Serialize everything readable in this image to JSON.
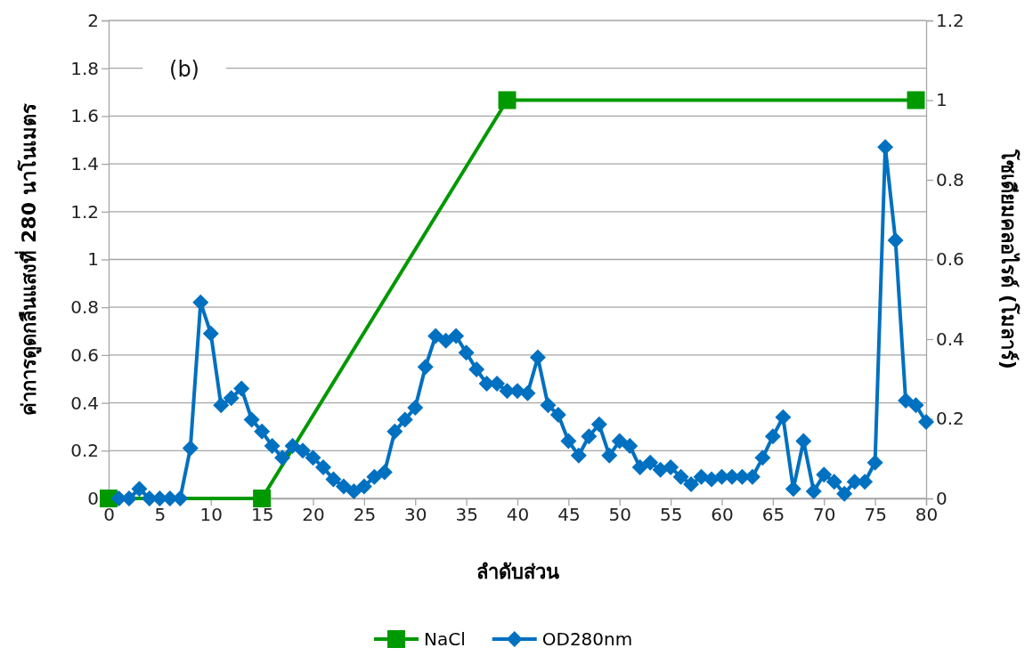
{
  "chart_data": {
    "type": "line",
    "xlabel": "ลำดับส่วน",
    "ylabel": "ค่าการดูดกลืนแสงที่ 280 นาโนเมตร",
    "y2label": "โซเดียมคลอไรด์ (โมลาร์)",
    "annotations": [
      "(b)"
    ],
    "xlim": [
      0,
      80
    ],
    "xticks": [
      0,
      5,
      10,
      15,
      20,
      25,
      30,
      35,
      40,
      45,
      50,
      55,
      60,
      65,
      70,
      75,
      80
    ],
    "ylim": [
      0,
      2
    ],
    "yticks": [
      0,
      0.2,
      0.4,
      0.6,
      0.8,
      1,
      1.2,
      1.4,
      1.6,
      1.8,
      2
    ],
    "y2lim": [
      0,
      1.2
    ],
    "y2ticks": [
      0,
      0.2,
      0.4,
      0.6,
      0.8,
      1,
      1.2
    ],
    "grid": "y",
    "legend": "bottom",
    "line_style": "solid",
    "series": [
      {
        "name": "NaCl",
        "color": "#009900",
        "axis": "y2",
        "marker": "square",
        "x": [
          0,
          15,
          39,
          79
        ],
        "values": [
          0,
          0,
          1,
          1
        ]
      },
      {
        "name": "OD280nm",
        "color": "#0070c0",
        "marker": "diamond",
        "x": [
          1,
          2,
          3,
          4,
          5,
          6,
          7,
          8,
          9,
          10,
          11,
          12,
          13,
          14,
          15,
          16,
          17,
          18,
          19,
          20,
          21,
          22,
          23,
          24,
          25,
          26,
          27,
          28,
          29,
          30,
          31,
          32,
          33,
          34,
          35,
          36,
          37,
          38,
          39,
          40,
          41,
          42,
          43,
          44,
          45,
          46,
          47,
          48,
          49,
          50,
          51,
          52,
          53,
          54,
          55,
          56,
          57,
          58,
          59,
          60,
          61,
          62,
          63,
          64,
          65,
          66,
          67,
          68,
          69,
          70,
          71,
          72,
          73,
          74,
          75,
          76,
          77,
          78,
          79,
          80
        ],
        "values": [
          0,
          0,
          0.04,
          0,
          0,
          0,
          0,
          0.21,
          0.82,
          0.69,
          0.39,
          0.42,
          0.46,
          0.33,
          0.28,
          0.22,
          0.17,
          0.22,
          0.2,
          0.17,
          0.13,
          0.08,
          0.05,
          0.03,
          0.05,
          0.09,
          0.11,
          0.28,
          0.33,
          0.38,
          0.55,
          0.68,
          0.66,
          0.68,
          0.61,
          0.54,
          0.48,
          0.48,
          0.45,
          0.45,
          0.44,
          0.59,
          0.39,
          0.35,
          0.24,
          0.18,
          0.26,
          0.31,
          0.18,
          0.24,
          0.22,
          0.13,
          0.15,
          0.12,
          0.13,
          0.09,
          0.06,
          0.09,
          0.08,
          0.09,
          0.09,
          0.09,
          0.09,
          0.17,
          0.26,
          0.34,
          0.04,
          0.24,
          0.03,
          0.1,
          0.07,
          0.02,
          0.07,
          0.07,
          0.15,
          1.47,
          1.08,
          0.41,
          0.39,
          0.32
        ]
      }
    ]
  }
}
